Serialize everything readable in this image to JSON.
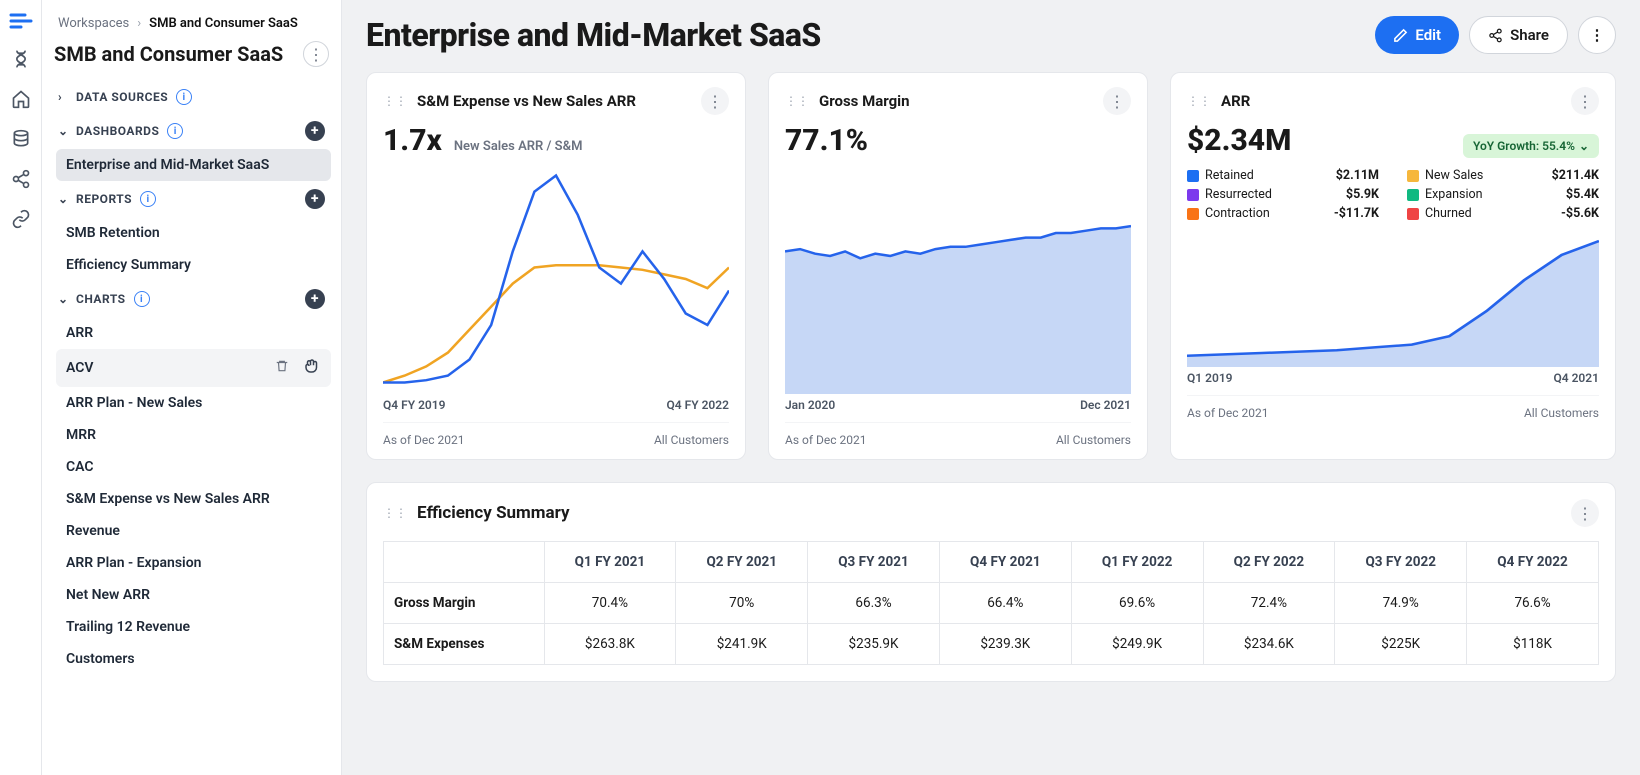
{
  "breadcrumbs": {
    "root": "Workspaces",
    "current": "SMB and Consumer SaaS"
  },
  "workspace_title": "SMB and Consumer SaaS",
  "sections": {
    "datasources": {
      "label": "DATA SOURCES"
    },
    "dashboards": {
      "label": "DASHBOARDS",
      "items": [
        "Enterprise and Mid-Market SaaS"
      ],
      "active": 0
    },
    "reports": {
      "label": "REPORTS",
      "items": [
        "SMB Retention",
        "Efficiency Summary"
      ]
    },
    "charts": {
      "label": "CHARTS",
      "items": [
        "ARR",
        "ACV",
        "ARR Plan - New Sales",
        "MRR",
        "CAC",
        "S&M Expense vs New Sales ARR",
        "Revenue",
        "ARR Plan - Expansion",
        "Net New ARR",
        "Trailing 12 Revenue",
        "Customers"
      ],
      "hover": 1
    }
  },
  "page": {
    "title": "Enterprise and Mid-Market SaaS",
    "edit": "Edit",
    "share": "Share"
  },
  "card_sm": {
    "title": "S&M Expense vs New Sales ARR",
    "metric": "1.7x",
    "sub": "New Sales ARR / S&M",
    "x0": "Q4 FY 2019",
    "x1": "Q4 FY 2022",
    "asof": "As of Dec 2021",
    "scope": "All Customers",
    "chart": {
      "type": "line",
      "colors": [
        "#2563eb",
        "#f0a423"
      ],
      "line_width": 2.5,
      "series_a": [
        5,
        5,
        6,
        8,
        15,
        30,
        62,
        88,
        95,
        78,
        55,
        48,
        62,
        50,
        35,
        30,
        45
      ],
      "series_b": [
        5,
        8,
        12,
        18,
        28,
        38,
        48,
        55,
        56,
        56,
        56,
        55,
        54,
        52,
        50,
        46,
        55
      ],
      "y_range": [
        0,
        100
      ]
    }
  },
  "card_gm": {
    "title": "Gross Margin",
    "metric": "77.1%",
    "x0": "Jan 2020",
    "x1": "Dec 2021",
    "asof": "As of Dec 2021",
    "scope": "All Customers",
    "chart": {
      "type": "area",
      "stroke": "#2563eb",
      "fill": "#c6d7f6",
      "values": [
        62,
        63,
        61,
        60,
        62,
        59,
        61,
        60,
        62,
        61,
        63,
        64,
        64,
        65,
        66,
        67,
        68,
        68,
        70,
        70,
        71,
        72,
        72,
        73
      ],
      "y_range": [
        0,
        100
      ]
    }
  },
  "card_arr": {
    "title": "ARR",
    "metric": "$2.34M",
    "badge": "YoY Growth: 55.4%",
    "x0": "Q1 2019",
    "x1": "Q4 2021",
    "asof": "As of Dec 2021",
    "scope": "All Customers",
    "legend": [
      {
        "label": "Retained",
        "val": "$2.11M",
        "c": "#1d6ff2"
      },
      {
        "label": "New Sales",
        "val": "$211.4K",
        "c": "#f6b73c"
      },
      {
        "label": "Resurrected",
        "val": "$5.9K",
        "c": "#7c3aed"
      },
      {
        "label": "Expansion",
        "val": "$5.4K",
        "c": "#10b981"
      },
      {
        "label": "Contraction",
        "val": "-$11.7K",
        "c": "#f97316"
      },
      {
        "label": "Churned",
        "val": "-$5.6K",
        "c": "#ef4444"
      }
    ],
    "chart": {
      "type": "area",
      "stroke": "#2563eb",
      "fill": "#c6d7f6",
      "values": [
        8,
        9,
        10,
        11,
        12,
        14,
        16,
        22,
        40,
        62,
        80,
        90
      ],
      "y_range": [
        0,
        100
      ]
    }
  },
  "table": {
    "title": "Efficiency Summary",
    "columns": [
      "",
      "Q1 FY 2021",
      "Q2 FY 2021",
      "Q3 FY 2021",
      "Q4 FY 2021",
      "Q1 FY 2022",
      "Q2 FY 2022",
      "Q3 FY 2022",
      "Q4 FY 2022"
    ],
    "rows": [
      [
        "Gross Margin",
        "70.4%",
        "70%",
        "66.3%",
        "66.4%",
        "69.6%",
        "72.4%",
        "74.9%",
        "76.6%"
      ],
      [
        "S&M Expenses",
        "$263.8K",
        "$241.9K",
        "$235.9K",
        "$239.3K",
        "$249.9K",
        "$234.6K",
        "$225K",
        "$118K"
      ]
    ]
  }
}
